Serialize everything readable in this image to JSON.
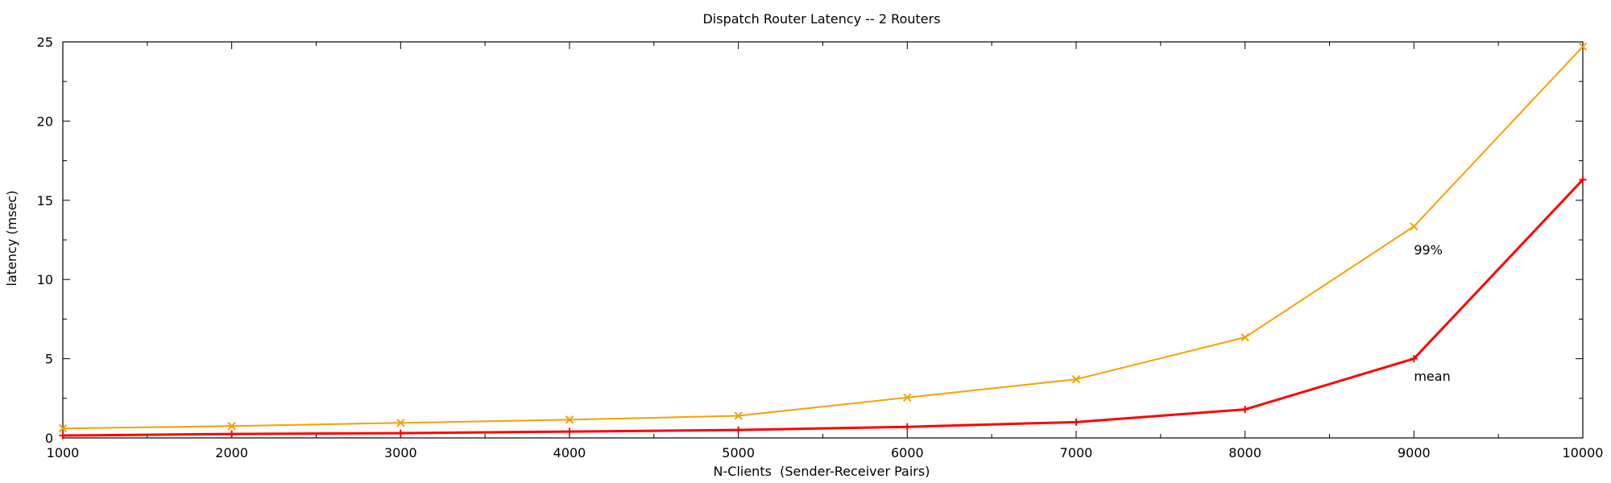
{
  "chart_data": {
    "type": "line",
    "title": "Dispatch Router Latency -- 2 Routers",
    "xlabel": "N-Clients  (Sender-Receiver Pairs)",
    "ylabel": "latency (msec)",
    "xlim": [
      1000,
      10000
    ],
    "ylim": [
      0,
      25
    ],
    "x_ticks": [
      1000,
      2000,
      3000,
      4000,
      5000,
      6000,
      7000,
      8000,
      9000,
      10000
    ],
    "y_ticks": [
      0,
      5,
      10,
      15,
      20,
      25
    ],
    "x": [
      1000,
      2000,
      3000,
      4000,
      5000,
      6000,
      7000,
      8000,
      9000,
      10000
    ],
    "series": [
      {
        "label": "99%",
        "color": "#f5a000",
        "marker": "x",
        "values": [
          0.6,
          0.75,
          0.95,
          1.15,
          1.4,
          2.55,
          3.7,
          6.35,
          13.35,
          24.7
        ]
      },
      {
        "label": "mean",
        "color": "#ff0000",
        "marker": "+",
        "values": [
          0.15,
          0.25,
          0.3,
          0.4,
          0.5,
          0.7,
          1.0,
          1.8,
          5.0,
          16.3
        ]
      }
    ],
    "annotations": [
      {
        "text": "99%",
        "x": 9000,
        "y": 11.9
      },
      {
        "text": "mean",
        "x": 9000,
        "y": 3.9
      }
    ],
    "grid": false,
    "legend": "none"
  }
}
